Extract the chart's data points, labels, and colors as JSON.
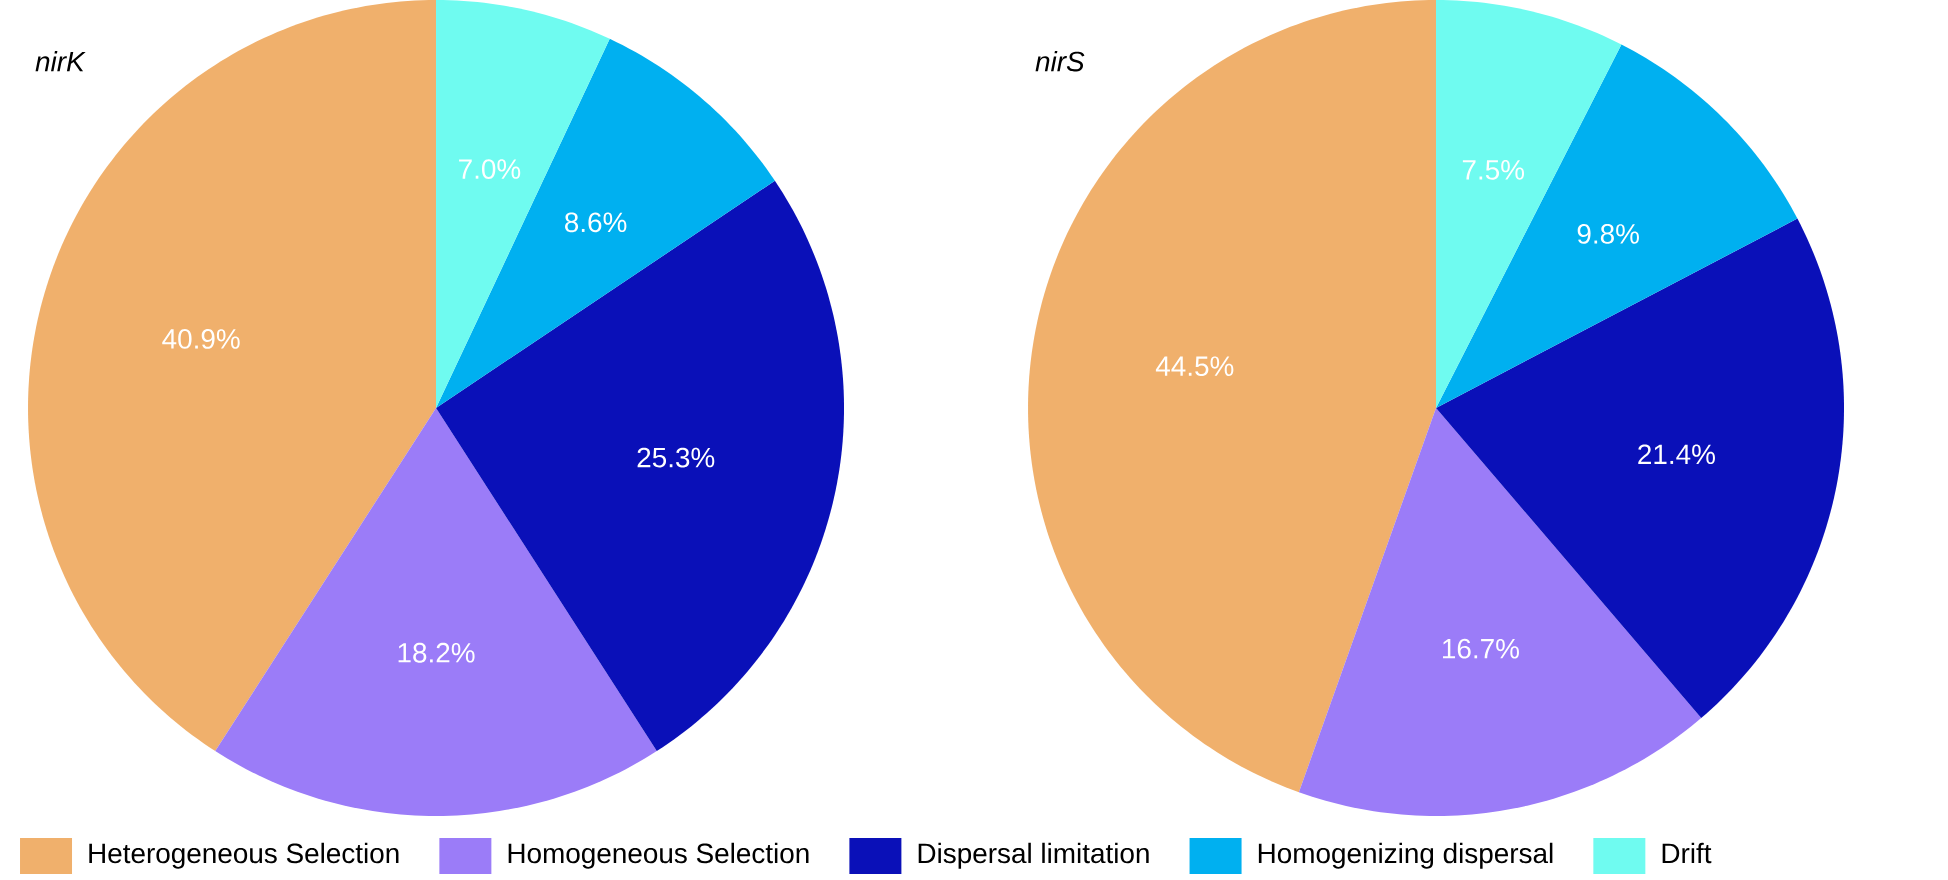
{
  "chart_data": [
    {
      "type": "pie",
      "title": "nirK",
      "categories": [
        "Heterogeneous Selection",
        "Homogeneous Selection",
        "Dispersal limitation",
        "Homogenizing dispersal",
        "Drift"
      ],
      "values": [
        40.9,
        18.2,
        25.3,
        8.6,
        7.0
      ],
      "value_labels": [
        "40.9%",
        "18.2%",
        "25.3%",
        "8.6%",
        "7.0%"
      ],
      "colors": [
        "#f0b06c",
        "#9b7cf8",
        "#0a10b8",
        "#00b0f0",
        "#6ffbf0"
      ],
      "legend": "bottom"
    },
    {
      "type": "pie",
      "title": "nirS",
      "values": [
        44.5,
        16.7,
        21.4,
        9.8,
        7.5
      ],
      "value_labels": [
        "44.5%",
        "16.7%",
        "21.4%",
        "9.8%",
        "7.5%"
      ],
      "colors": [
        "#f0b06c",
        "#9b7cf8",
        "#0a10b8",
        "#00b0f0",
        "#6ffbf0"
      ]
    }
  ]
}
